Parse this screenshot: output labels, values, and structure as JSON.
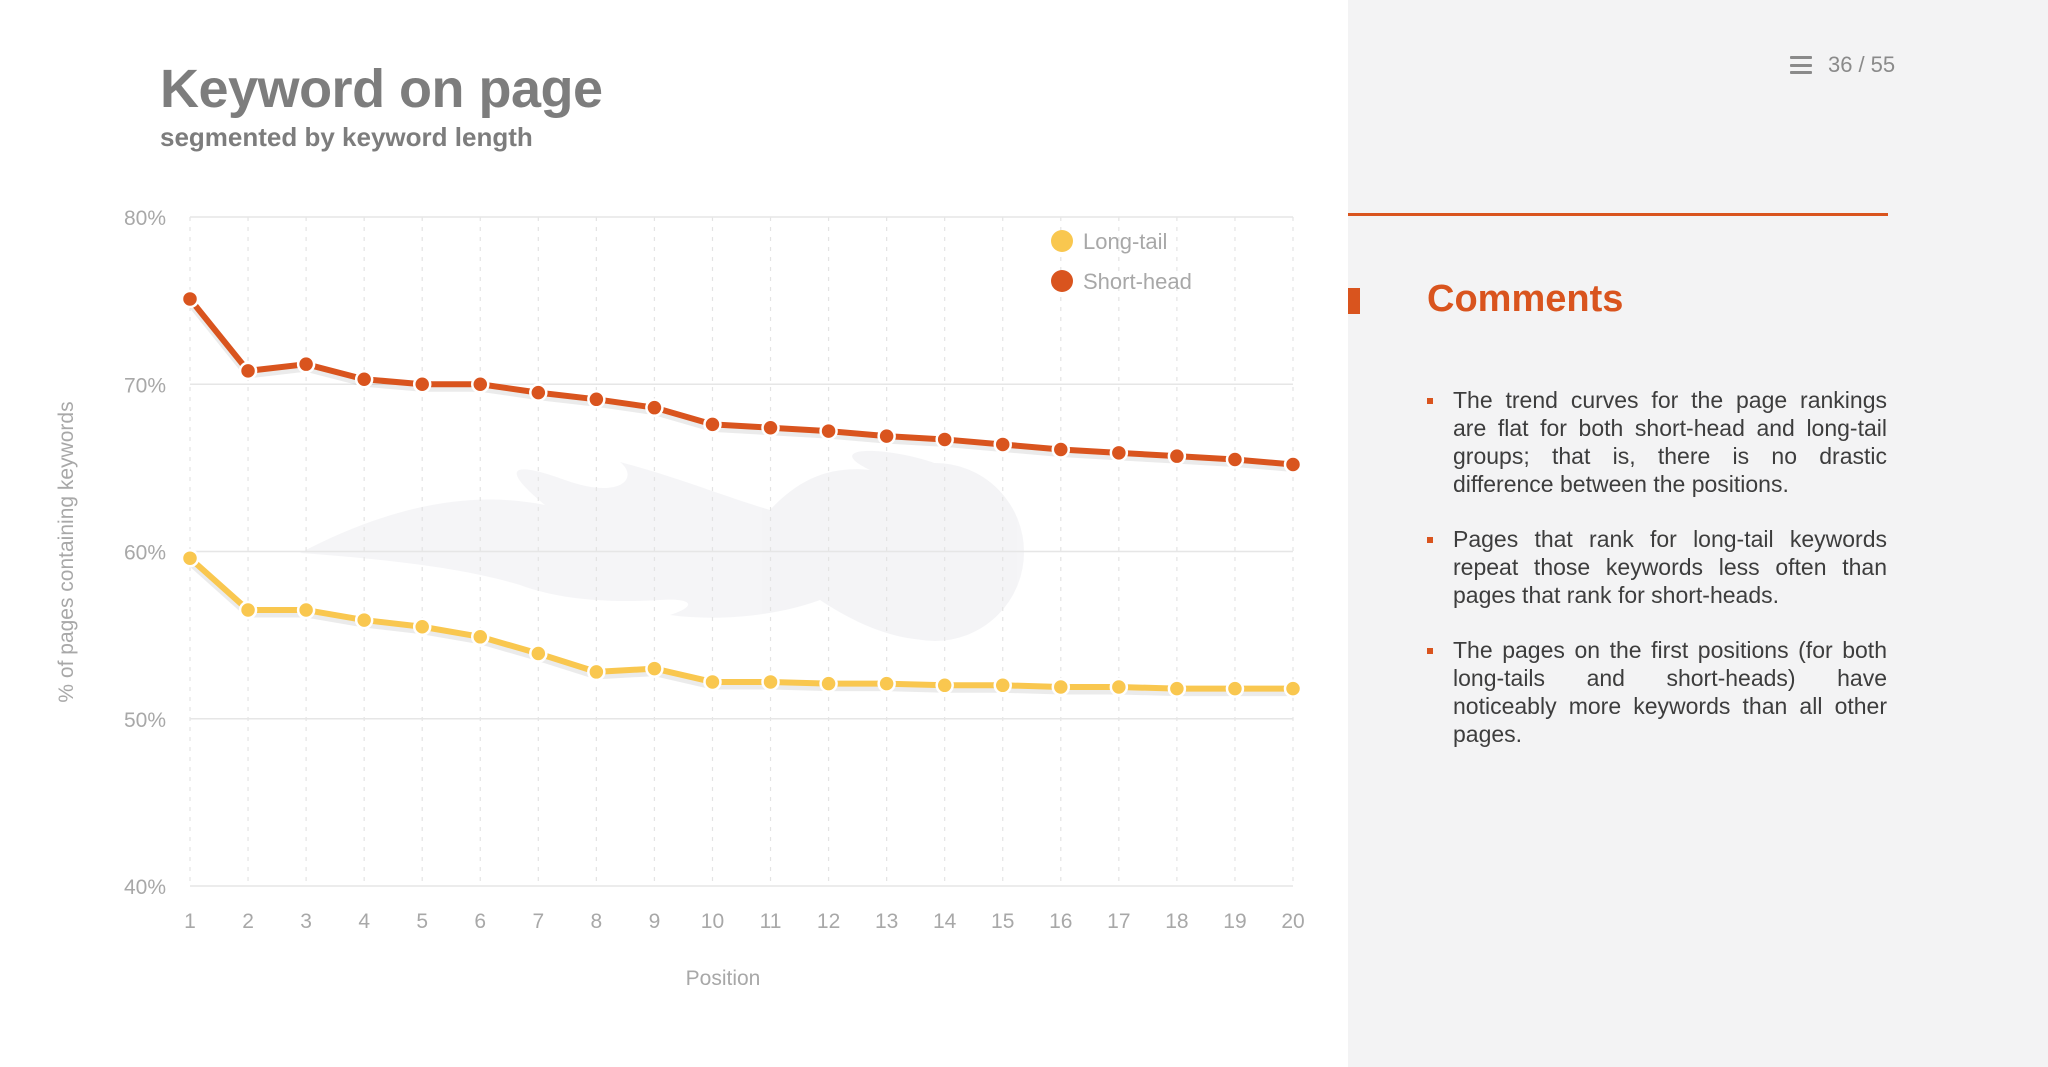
{
  "slide": {
    "title": "Keyword on page",
    "subtitle": "segmented by keyword length",
    "page_current": "36",
    "page_separator": "/",
    "page_total": "55",
    "menu_icon": "hamburger-menu-icon"
  },
  "comments": {
    "heading": "Comments",
    "items": [
      "The trend curves for the page rankings are flat for both short-head and long-tail groups; that is, there is no drastic difference between the positions.",
      "Pages that rank for long-tail keywords repeat those keywords less often than pages that rank for short-heads.",
      "The pages on the first positions (for both long-tails and short-heads) have noticeably more keywords than all other pages."
    ]
  },
  "colors": {
    "accent": "#d9541e",
    "long_tail": "#f9c74f",
    "short_head": "#d9541e",
    "text_gray": "#7d7d7d",
    "panel_gray": "#f3f3f4"
  },
  "chart_data": {
    "type": "line",
    "xlabel": "Position",
    "ylabel": "% of pages containing keywords",
    "x": [
      1,
      2,
      3,
      4,
      5,
      6,
      7,
      8,
      9,
      10,
      11,
      12,
      13,
      14,
      15,
      16,
      17,
      18,
      19,
      20
    ],
    "y_ticks": [
      "40%",
      "50%",
      "60%",
      "70%",
      "80%"
    ],
    "ylim": [
      40,
      80
    ],
    "grid": "horizontal solid, vertical dashed",
    "legend_position": "top-right",
    "series": [
      {
        "name": "Long-tail",
        "color": "#f9c74f",
        "values": [
          59.6,
          56.5,
          56.5,
          55.9,
          55.5,
          54.9,
          53.9,
          52.8,
          53.0,
          52.2,
          52.2,
          52.1,
          52.1,
          52.0,
          52.0,
          51.9,
          51.9,
          51.8,
          51.8,
          51.8
        ]
      },
      {
        "name": "Short-head",
        "color": "#d9541e",
        "values": [
          75.1,
          70.8,
          71.2,
          70.3,
          70.0,
          70.0,
          69.5,
          69.1,
          68.6,
          67.6,
          67.4,
          67.2,
          66.9,
          66.7,
          66.4,
          66.1,
          65.9,
          65.7,
          65.5,
          65.2
        ]
      }
    ]
  }
}
